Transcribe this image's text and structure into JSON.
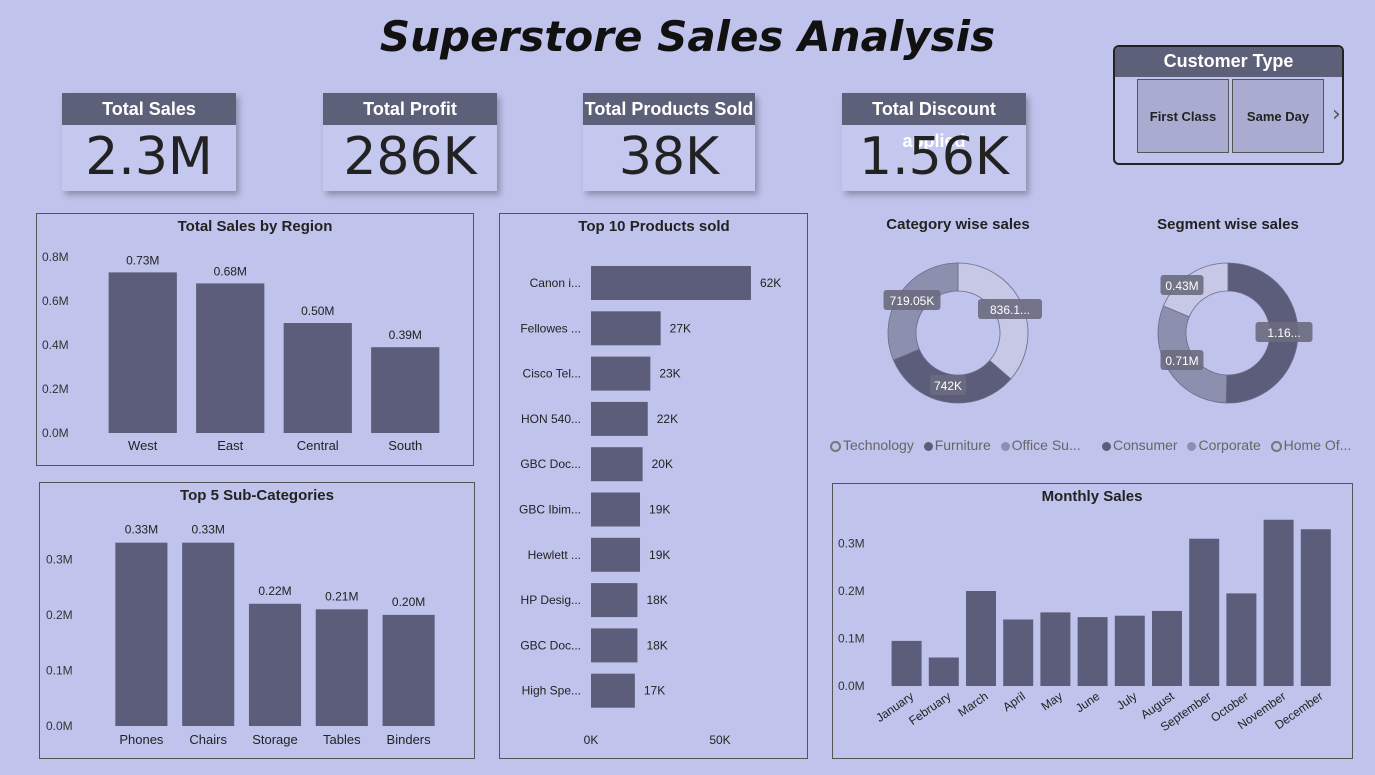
{
  "title": "Superstore Sales Analysis",
  "kpis": [
    {
      "label": "Total Sales",
      "value": "2.3M"
    },
    {
      "label": "Total Profit",
      "value": "286K"
    },
    {
      "label": "Total Products Sold",
      "value": "38K"
    },
    {
      "label": "Total Discount applied",
      "value": "1.56K"
    }
  ],
  "slicer": {
    "title": "Customer Type",
    "options": [
      "First Class",
      "Same Day"
    ],
    "next_icon": "chevron-right-icon"
  },
  "colors": {
    "bar": "#5b5d7b",
    "background": "#c0c4ec",
    "header": "#5d6079",
    "donut_dark": "#5b5d7b",
    "donut_mid": "#8c8fae",
    "donut_light": "#c6c8e6"
  },
  "chart_data": [
    {
      "type": "bar",
      "title": "Total Sales by Region",
      "categories": [
        "West",
        "East",
        "Central",
        "South"
      ],
      "values": [
        0.73,
        0.68,
        0.5,
        0.39
      ],
      "data_labels": [
        "0.73M",
        "0.68M",
        "0.50M",
        "0.39M"
      ],
      "yticks": [
        "0.0M",
        "0.2M",
        "0.4M",
        "0.6M",
        "0.8M"
      ],
      "ylim": [
        0,
        0.8
      ],
      "unit": "M"
    },
    {
      "type": "bar",
      "title": "Top 5 Sub-Categories",
      "categories": [
        "Phones",
        "Chairs",
        "Storage",
        "Tables",
        "Binders"
      ],
      "values": [
        0.33,
        0.33,
        0.22,
        0.21,
        0.2
      ],
      "data_labels": [
        "0.33M",
        "0.33M",
        "0.22M",
        "0.21M",
        "0.20M"
      ],
      "yticks": [
        "0.0M",
        "0.1M",
        "0.2M",
        "0.3M"
      ],
      "ylim": [
        0,
        0.3
      ],
      "unit": "M"
    },
    {
      "type": "bar",
      "orientation": "horizontal",
      "title": "Top 10 Products sold",
      "categories": [
        "Canon i...",
        "Fellowes ...",
        "Cisco Tel...",
        "HON 540...",
        "GBC Doc...",
        "GBC Ibim...",
        "Hewlett ...",
        "HP Desig...",
        "GBC Doc...",
        "High Spe..."
      ],
      "values": [
        62,
        27,
        23,
        22,
        20,
        19,
        19,
        18,
        18,
        17
      ],
      "data_labels": [
        "62K",
        "27K",
        "23K",
        "22K",
        "20K",
        "19K",
        "19K",
        "18K",
        "18K",
        "17K"
      ],
      "xticks": [
        "0K",
        "50K"
      ],
      "xlim": [
        0,
        50
      ],
      "unit": "K"
    },
    {
      "type": "pie",
      "donut": true,
      "title": "Category wise sales",
      "series": [
        {
          "name": "Technology",
          "value": 836.1,
          "label": "836.1...",
          "color": "#c6c8e6"
        },
        {
          "name": "Furniture",
          "value": 742,
          "label": "742K",
          "color": "#5b5d7b"
        },
        {
          "name": "Office Su...",
          "value": 719.05,
          "label": "719.05K",
          "color": "#8c8fae"
        }
      ],
      "legend_position": "bottom"
    },
    {
      "type": "pie",
      "donut": true,
      "title": "Segment wise sales",
      "series": [
        {
          "name": "Consumer",
          "value": 1.16,
          "label": "1.16...",
          "color": "#5b5d7b"
        },
        {
          "name": "Corporate",
          "value": 0.71,
          "label": "0.71M",
          "color": "#8c8fae"
        },
        {
          "name": "Home Of...",
          "value": 0.43,
          "label": "0.43M",
          "color": "#c6c8e6"
        }
      ],
      "legend_position": "bottom"
    },
    {
      "type": "bar",
      "title": "Monthly Sales",
      "categories": [
        "January",
        "February",
        "March",
        "April",
        "May",
        "June",
        "July",
        "August",
        "September",
        "October",
        "November",
        "December"
      ],
      "values": [
        0.095,
        0.06,
        0.2,
        0.14,
        0.155,
        0.145,
        0.148,
        0.158,
        0.31,
        0.195,
        0.35,
        0.33
      ],
      "yticks": [
        "0.0M",
        "0.1M",
        "0.2M",
        "0.3M"
      ],
      "ylim": [
        0,
        0.35
      ],
      "unit": "M"
    }
  ]
}
